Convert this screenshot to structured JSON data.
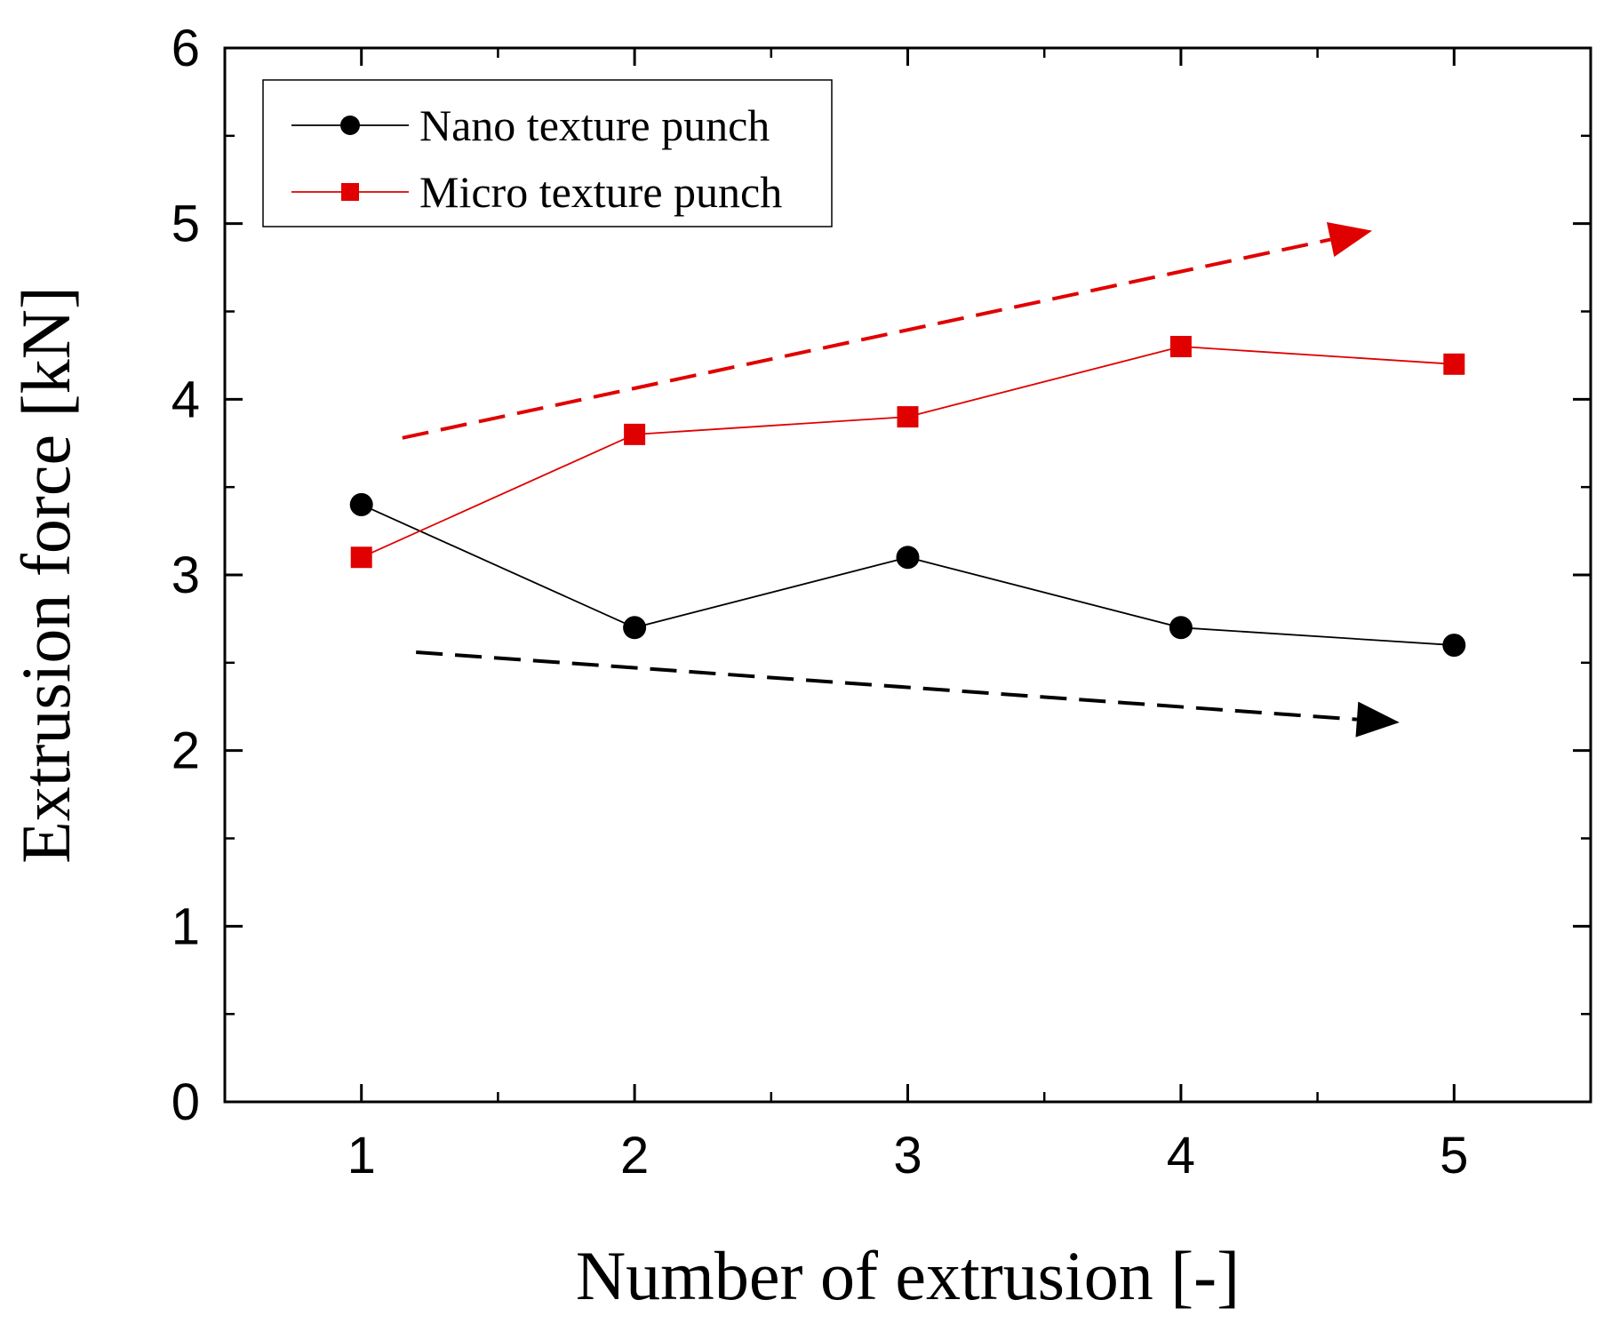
{
  "chart_data": {
    "type": "line",
    "title": "",
    "xlabel": "Number of extrusion [-]",
    "ylabel": "Extrusion force [kN]",
    "x": [
      1,
      2,
      3,
      4,
      5
    ],
    "xlim": [
      0.5,
      5.5
    ],
    "ylim": [
      0,
      6
    ],
    "xticks": [
      1,
      2,
      3,
      4,
      5
    ],
    "yticks": [
      0,
      1,
      2,
      3,
      4,
      5,
      6
    ],
    "grid": false,
    "legend_position": "top-left",
    "series": [
      {
        "name": "Nano texture punch",
        "values": [
          3.4,
          2.7,
          3.1,
          2.7,
          2.6
        ],
        "color": "#000000",
        "marker": "circle"
      },
      {
        "name": "Micro texture punch",
        "values": [
          3.1,
          3.8,
          3.9,
          4.3,
          4.2
        ],
        "color": "#e00000",
        "marker": "square"
      }
    ],
    "annotations": [
      {
        "name": "micro-trend-arrow",
        "kind": "dashed-arrow",
        "color": "#e00000",
        "from": [
          1.15,
          3.78
        ],
        "to": [
          4.7,
          4.96
        ],
        "meaning": "increasing"
      },
      {
        "name": "nano-trend-arrow",
        "kind": "dashed-arrow",
        "color": "#000000",
        "from": [
          1.2,
          2.56
        ],
        "to": [
          4.8,
          2.16
        ],
        "meaning": "decreasing"
      }
    ]
  }
}
